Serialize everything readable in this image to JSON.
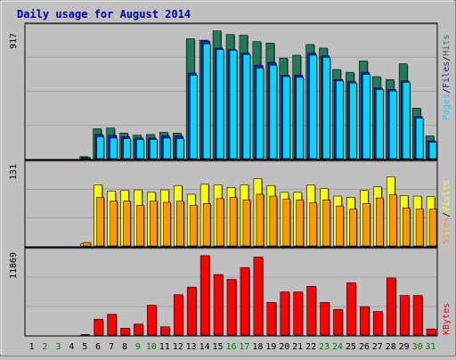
{
  "title": "Daily usage for August 2014",
  "colors": {
    "background": "#c0c0c0",
    "panel": "#c0c0c0",
    "title": "#0000aa",
    "hits": "#1f7a5a",
    "files": "#2020c0",
    "pages": "#00d8ff",
    "visits": "#ffff00",
    "sites": "#ff9900",
    "kbytes": "#ff0000",
    "weekend_label": "#008000",
    "weekday_label": "#000000"
  },
  "panels": {
    "hits": {
      "max_label": "917",
      "legend": {
        "pages": "Pages",
        "sep1": "/",
        "files": "Files",
        "sep2": "/",
        "hits": "Hits"
      }
    },
    "visits": {
      "max_label": "131",
      "legend": {
        "sites": "Sites",
        "sep": "/",
        "visits": "Visits"
      }
    },
    "kbytes": {
      "max_label": "11869",
      "legend": {
        "kbytes": "KBytes"
      }
    }
  },
  "chart_data": {
    "type": "bar",
    "title": "Daily usage for August 2014",
    "categories": [
      "1",
      "2",
      "3",
      "4",
      "5",
      "6",
      "7",
      "8",
      "9",
      "10",
      "11",
      "12",
      "13",
      "14",
      "15",
      "16",
      "17",
      "18",
      "19",
      "20",
      "21",
      "22",
      "23",
      "24",
      "25",
      "26",
      "27",
      "28",
      "29",
      "30",
      "31"
    ],
    "weekend_days": [
      "2",
      "3",
      "9",
      "10",
      "16",
      "17",
      "23",
      "24",
      "30",
      "31"
    ],
    "hits_panel": {
      "ymax": 917,
      "series": [
        {
          "name": "Hits",
          "values": [
            0,
            0,
            0,
            0,
            20,
            215,
            220,
            185,
            170,
            175,
            190,
            185,
            845,
            835,
            900,
            875,
            870,
            825,
            815,
            710,
            730,
            805,
            780,
            630,
            610,
            690,
            580,
            560,
            670,
            360,
            165
          ]
        },
        {
          "name": "Files",
          "values": [
            0,
            0,
            0,
            0,
            15,
            175,
            170,
            160,
            150,
            150,
            165,
            165,
            605,
            830,
            780,
            770,
            745,
            660,
            680,
            590,
            590,
            745,
            725,
            560,
            545,
            610,
            500,
            490,
            550,
            300,
            130
          ]
        },
        {
          "name": "Pages",
          "values": [
            0,
            0,
            0,
            0,
            12,
            160,
            150,
            145,
            140,
            140,
            150,
            145,
            590,
            810,
            770,
            765,
            735,
            640,
            660,
            580,
            575,
            730,
            715,
            550,
            535,
            595,
            490,
            480,
            540,
            290,
            120
          ]
        }
      ]
    },
    "visits_panel": {
      "ymax": 131,
      "series": [
        {
          "name": "Visits",
          "values": [
            0,
            0,
            0,
            0,
            5,
            100,
            90,
            91,
            92,
            88,
            92,
            99,
            85,
            101,
            100,
            96,
            100,
            110,
            99,
            88,
            88,
            100,
            94,
            82,
            80,
            91,
            97,
            113,
            83,
            82,
            81
          ]
        },
        {
          "name": "Sites",
          "values": [
            0,
            0,
            0,
            0,
            7,
            80,
            74,
            74,
            67,
            74,
            72,
            74,
            67,
            70,
            78,
            80,
            76,
            85,
            82,
            77,
            76,
            71,
            76,
            66,
            61,
            70,
            79,
            84,
            63,
            61,
            61
          ]
        }
      ]
    },
    "kbytes_panel": {
      "ymax": 11869,
      "series": [
        {
          "name": "KBytes",
          "values": [
            0,
            0,
            0,
            0,
            200,
            2400,
            3100,
            1100,
            1700,
            4400,
            1300,
            5900,
            7000,
            11500,
            8800,
            8100,
            9800,
            11300,
            4800,
            6300,
            6300,
            7100,
            4800,
            3800,
            7600,
            4200,
            3500,
            8300,
            5800,
            5800,
            1000
          ]
        }
      ]
    }
  }
}
